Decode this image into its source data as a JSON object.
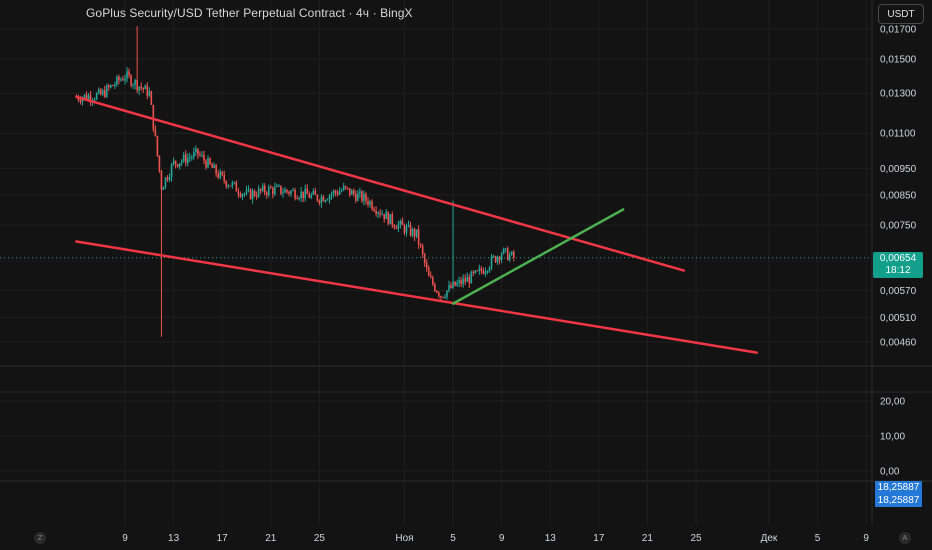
{
  "header": {
    "title": "GoPlus Security/USD Tether Perpetual Contract · 4ч · BingX",
    "currency_label": "USDT"
  },
  "price_label": {
    "value": "0,00654",
    "countdown": "18:12"
  },
  "indicator_labels": [
    "18,25887",
    "18,25887"
  ],
  "scale_buttons": {
    "left": "Z",
    "right": "A"
  },
  "colors": {
    "background": "#131313",
    "up_candle": "#26a69a",
    "down_candle": "#ef5350",
    "trendline_red": "#f23645",
    "trendline_green": "#4caf50",
    "price_badge": "#129f8c",
    "indicator_badge": "#2478d8"
  },
  "chart_data": {
    "type": "candlestick",
    "title": "GoPlus Security/USD Tether Perpetual Contract · 4ч · BingX",
    "timeframe": "4ч",
    "exchange": "BingX",
    "x_tick_labels": [
      "9",
      "13",
      "17",
      "21",
      "25",
      "Ноя",
      "5",
      "9",
      "13",
      "17",
      "21",
      "25",
      "Дек",
      "5",
      "9"
    ],
    "y_tick_labels": [
      "0,01700",
      "0,01500",
      "0,01300",
      "0,01100",
      "0,00950",
      "0,00850",
      "0,00750",
      "0,00570",
      "0,00510",
      "0,00460"
    ],
    "current_price": 0.00654,
    "log_scale": true,
    "price_series": [
      {
        "date": "Oct 5",
        "close": 0.0128
      },
      {
        "date": "Oct 7",
        "close": 0.0129
      },
      {
        "date": "Oct 9",
        "close": 0.014
      },
      {
        "date": "Oct 10",
        "high": 0.0172
      },
      {
        "date": "Oct 11",
        "close": 0.013
      },
      {
        "date": "Oct 12",
        "low": 0.0047,
        "close": 0.0088
      },
      {
        "date": "Oct 13",
        "close": 0.0097
      },
      {
        "date": "Oct 15",
        "close": 0.0101
      },
      {
        "date": "Oct 17",
        "close": 0.0091
      },
      {
        "date": "Oct 19",
        "close": 0.0085
      },
      {
        "date": "Oct 21",
        "close": 0.0087
      },
      {
        "date": "Oct 23",
        "close": 0.0086
      },
      {
        "date": "Oct 25",
        "close": 0.0084
      },
      {
        "date": "Oct 27",
        "close": 0.0087
      },
      {
        "date": "Oct 29",
        "close": 0.0083
      },
      {
        "date": "Oct 31",
        "close": 0.0076
      },
      {
        "date": "Nov 2",
        "close": 0.0072
      },
      {
        "date": "Nov 3",
        "close": 0.006
      },
      {
        "date": "Nov 4",
        "close": 0.0056
      },
      {
        "date": "Nov 5",
        "high": 0.0083,
        "close": 0.0058
      },
      {
        "date": "Nov 7",
        "close": 0.0061
      },
      {
        "date": "Nov 9",
        "close": 0.0067
      },
      {
        "date": "Nov 10",
        "close": 0.00654
      }
    ],
    "trendlines": [
      {
        "name": "upper resistance",
        "color": "red",
        "start": {
          "date": "Oct 5",
          "price": 0.0128
        },
        "end": {
          "date": "Nov 24",
          "price": 0.0062
        }
      },
      {
        "name": "lower support",
        "color": "red",
        "start": {
          "date": "Oct 5",
          "price": 0.007
        },
        "end": {
          "date": "Nov 30",
          "price": 0.0044
        }
      },
      {
        "name": "rising support",
        "color": "green",
        "start": {
          "date": "Nov 5",
          "price": 0.0054
        },
        "end": {
          "date": "Nov 19",
          "price": 0.008
        }
      }
    ],
    "indicator_pane": {
      "y_tick_labels": [
        "20,00",
        "10,00",
        "0,00"
      ],
      "value": 18.25887
    }
  }
}
